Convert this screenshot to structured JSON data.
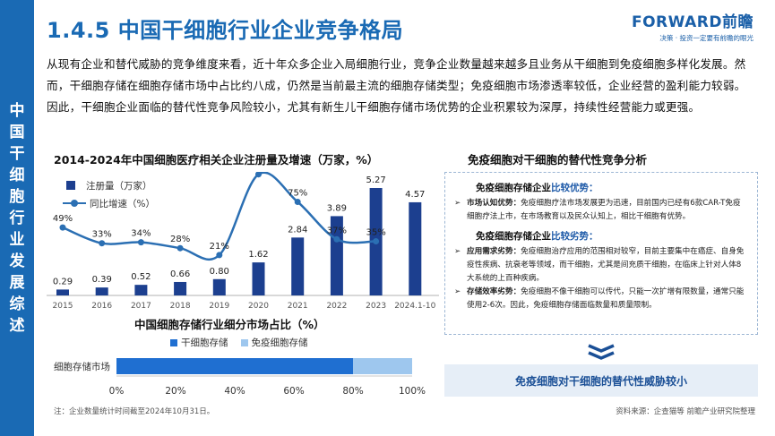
{
  "sidebar": {
    "text": "中国干细胞行业发展综述"
  },
  "page": {
    "title": "1.4.5 中国干细胞行业企业竞争格局"
  },
  "logo": {
    "name": "FORWARD前瞻",
    "slogan": "决策 · 投资一定要有前瞻的眼光"
  },
  "intro": {
    "text": "从现有企业和替代威胁的竞争维度来看，近十年众多企业入局细胞行业，竞争企业数量越来越多且业务从干细胞到免疫细胞多样化发展。然而，干细胞存储在细胞存储市场中占比约八成，仍然是当前最主流的细胞存储类型；免疫细胞市场渗透率较低，企业经营的盈利能力较弱。因此，干细胞企业面临的替代性竞争风险较小，尤其有新生儿干细胞存储市场优势的企业积累较为深厚，持续性经营能力或更强。"
  },
  "chart_data": [
    {
      "type": "bar",
      "title": "2014-2024年中国细胞医疗相关企业注册量及增速（万家，%）",
      "categories": [
        "2015",
        "2016",
        "2017",
        "2018",
        "2019",
        "2020",
        "2021",
        "2022",
        "2023",
        "2024.1-10"
      ],
      "series": [
        {
          "name": "注册量（万家）",
          "type": "bar",
          "values": [
            0.29,
            0.39,
            0.52,
            0.66,
            0.8,
            1.62,
            2.84,
            3.89,
            5.27,
            4.57
          ],
          "labels": [
            "0.29",
            "0.39",
            "0.52",
            "0.66",
            "0.80",
            "1.62",
            "2.84",
            "3.89",
            "5.27",
            "4.57"
          ]
        },
        {
          "name": "同比增速（%）",
          "type": "line",
          "values": [
            49,
            33,
            34,
            28,
            21,
            103,
            75,
            37,
            35,
            null
          ],
          "labels": [
            "49%",
            "33%",
            "34%",
            "28%",
            "21%",
            "103%",
            "75%",
            "37%",
            "35%",
            ""
          ]
        }
      ],
      "colors": {
        "bar": "#1c3f8f",
        "line": "#2b6fb3"
      }
    },
    {
      "type": "bar",
      "title": "中国细胞存储行业细分市场占比（%）",
      "categories": [
        "细胞存储市场"
      ],
      "series": [
        {
          "name": "干细胞存储",
          "values": [
            80
          ],
          "color": "#1f6fd1"
        },
        {
          "name": "免疫细胞存储",
          "values": [
            20
          ],
          "color": "#9ec7ee"
        }
      ],
      "xticks": [
        "0%",
        "20%",
        "40%",
        "60%",
        "80%",
        "100%"
      ],
      "xlim": [
        0,
        100
      ]
    }
  ],
  "panel": {
    "title": "免疫细胞对干细胞的替代性竞争分析",
    "advantages": {
      "head_prefix": "免疫细胞存储企业",
      "head_highlight": "比较优势：",
      "items": [
        {
          "label": "市场认知优势：",
          "text": "免疫细胞疗法市场发展更为迅速，目前国内已经有6款CAR-T免疫细胞疗法上市，在市场教育以及民众认知上，相比干细胞有优势。"
        }
      ]
    },
    "disadvantages": {
      "head_prefix": "免疫细胞存储企业",
      "head_highlight": "比较劣势：",
      "items": [
        {
          "label": "应用需求劣势：",
          "text": "免疫细胞治疗应用的范围相对较窄，目前主要集中在癌症、自身免疫性疾病、抗衰老等领域，而干细胞，尤其是间充质干细胞，在临床上针对人体8大系统的上百种疾病。"
        },
        {
          "label": "存储效率劣势：",
          "text": "免疫细胞不像干细胞可以传代，只能一次扩增有限数量，通常只能使用2-6次。因此，免疫细胞存储面临数量和质量限制。"
        }
      ]
    },
    "conclusion": "免疫细胞对干细胞的替代性威胁较小"
  },
  "footer": {
    "note": "注：企业数量统计时间截至2024年10月31日。",
    "source": "资料来源：企查猫等 前瞻产业研究院整理"
  }
}
